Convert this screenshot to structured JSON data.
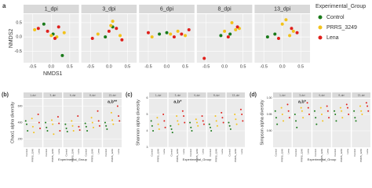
{
  "chart_data": [
    {
      "type": "scatter",
      "panel_label": "a",
      "xlabel": "NMDS1",
      "ylabel": "NMDS2",
      "legend_title": "Experimental_Group",
      "groups": [
        {
          "name": "Control",
          "color": "#1a7a1a"
        },
        {
          "name": "PRRS_3249",
          "color": "#f2c21b"
        },
        {
          "name": "Lena",
          "color": "#e0201b"
        }
      ],
      "xlim": [
        -0.75,
        0.75
      ],
      "xticks": [
        -0.5,
        {
          "value": 0,
          "label": "0.0"
        },
        0.5
      ],
      "ylim": [
        -0.9,
        0.8
      ],
      "yticks": [
        -0.5,
        {
          "value": 0,
          "label": "0.0"
        },
        0.5
      ],
      "grid": true,
      "facets": [
        {
          "title": "1_dpi",
          "series": [
            {
              "x": [
                -0.2,
                0.05,
                0.3
              ],
              "y": [
                0.45,
                0.1,
                -0.65
              ]
            },
            {
              "x": [
                -0.45,
                0.0,
                0.15,
                0.35
              ],
              "y": [
                0.25,
                0.05,
                0.0,
                0.15
              ]
            },
            {
              "x": [
                -0.35,
                -0.1,
                0.1,
                0.2
              ],
              "y": [
                0.3,
                0.2,
                -0.05,
                0.35
              ]
            }
          ]
        },
        {
          "title": "3_dpi",
          "series": [
            {
              "x": [
                -0.1,
                0.1
              ],
              "y": [
                0.0,
                0.35
              ]
            },
            {
              "x": [
                -0.3,
                0.05,
                0.3,
                0.1
              ],
              "y": [
                0.1,
                0.4,
                0.05,
                0.55
              ]
            },
            {
              "x": [
                -0.45,
                0.0,
                0.2,
                0.35
              ],
              "y": [
                -0.05,
                0.2,
                0.3,
                -0.1
              ]
            }
          ]
        },
        {
          "title": "6_dpi",
          "series": [
            {
              "x": [
                -0.2,
                0.0
              ],
              "y": [
                0.1,
                0.15
              ]
            },
            {
              "x": [
                -0.4,
                0.1,
                0.3,
                0.5
              ],
              "y": [
                0.0,
                0.1,
                0.2,
                0.05
              ]
            },
            {
              "x": [
                -0.5,
                0.2,
                0.4,
                0.6
              ],
              "y": [
                0.15,
                0.0,
                0.1,
                0.25
              ]
            }
          ]
        },
        {
          "title": "8_dpi",
          "series": [
            {
              "x": [
                -0.1,
                0.15
              ],
              "y": [
                0.05,
                0.1
              ]
            },
            {
              "x": [
                0.0,
                0.3,
                0.2,
                0.4
              ],
              "y": [
                0.2,
                0.25,
                0.5,
                0.3
              ]
            },
            {
              "x": [
                -0.55,
                0.1,
                0.35
              ],
              "y": [
                -0.75,
                0.0,
                0.35
              ]
            }
          ]
        },
        {
          "title": "13_dpi",
          "series": [
            {
              "x": [
                -0.4,
                -0.2
              ],
              "y": [
                0.0,
                0.1
              ]
            },
            {
              "x": [
                0.0,
                0.1,
                0.3,
                0.2
              ],
              "y": [
                0.45,
                0.6,
                0.2,
                0.05
              ]
            },
            {
              "x": [
                -0.1,
                0.25,
                0.4
              ],
              "y": [
                -0.05,
                0.3,
                0.15
              ]
            }
          ]
        }
      ]
    },
    {
      "type": "strip",
      "panel_label": "(b)",
      "ylabel": "Chao1 alpha diversity",
      "xlabel": "Experimental_Group",
      "categories": [
        "Control",
        "PRRS_3249",
        "Lena"
      ],
      "colors": [
        "#1a7a1a",
        "#f2c21b",
        "#e0201b"
      ],
      "ylim": [
        100,
        700
      ],
      "yticks": [
        200,
        400,
        600
      ],
      "annotation": {
        "facet": 4,
        "text": "a,b**"
      },
      "facets": [
        {
          "title": "1_dpi",
          "values": [
            [
              420,
              380,
              300
            ],
            [
              450,
              350,
              280
            ],
            [
              500,
              400,
              330
            ]
          ]
        },
        {
          "title": "3_dpi",
          "values": [
            [
              400,
              340,
              300
            ],
            [
              430,
              380,
              260
            ],
            [
              470,
              390,
              300
            ]
          ]
        },
        {
          "title": "6_dpi",
          "values": [
            [
              380,
              330,
              290
            ],
            [
              420,
              360,
              300
            ],
            [
              480,
              350,
              310
            ]
          ]
        },
        {
          "title": "8_dpi",
          "values": [
            [
              390,
              350,
              300
            ],
            [
              460,
              400,
              340
            ],
            [
              540,
              420,
              360
            ]
          ]
        },
        {
          "title": "13_dpi",
          "values": [
            [
              400,
              360,
              320
            ],
            [
              520,
              430,
              380
            ],
            [
              600,
              480,
              420
            ]
          ]
        }
      ]
    },
    {
      "type": "strip",
      "panel_label": "(c)",
      "ylabel": "Shannon alpha diversity",
      "xlabel": "Experimental_Group",
      "categories": [
        "Control",
        "PRRS_3249",
        "Lena"
      ],
      "colors": [
        "#1a7a1a",
        "#f2c21b",
        "#e0201b"
      ],
      "ylim": [
        3,
        6
      ],
      "yticks": [
        3,
        4,
        5,
        6
      ],
      "annotation": {
        "facet": 1,
        "text": "a,b*"
      },
      "facets": [
        {
          "title": "1_dpi",
          "values": [
            [
              4.6,
              4.3,
              4.0
            ],
            [
              4.8,
              4.4,
              4.1
            ],
            [
              5.0,
              4.6,
              4.2
            ]
          ]
        },
        {
          "title": "3_dpi",
          "values": [
            [
              4.3,
              4.1,
              3.9
            ],
            [
              4.9,
              4.6,
              4.4
            ],
            [
              5.2,
              4.9,
              4.5
            ]
          ]
        },
        {
          "title": "6_dpi",
          "values": [
            [
              4.5,
              4.2,
              4.0
            ],
            [
              4.7,
              4.5,
              4.3
            ],
            [
              4.9,
              4.6,
              4.4
            ]
          ]
        },
        {
          "title": "8_dpi",
          "values": [
            [
              4.4,
              4.2,
              4.0
            ],
            [
              4.9,
              4.6,
              4.3
            ],
            [
              5.1,
              4.8,
              4.5
            ]
          ]
        },
        {
          "title": "13_dpi",
          "values": [
            [
              4.5,
              4.3,
              4.1
            ],
            [
              5.0,
              4.7,
              4.4
            ],
            [
              5.3,
              5.0,
              4.6
            ]
          ]
        }
      ]
    },
    {
      "type": "strip",
      "panel_label": "(d)",
      "ylabel": "Simpson alpha diversity",
      "xlabel": "Experimental_Group",
      "categories": [
        "Control",
        "PRRS_3249",
        "Lena"
      ],
      "colors": [
        "#1a7a1a",
        "#f2c21b",
        "#e0201b"
      ],
      "ylim": [
        0.85,
        1.0
      ],
      "yticks": [
        {
          "value": 0.9,
          "label": "0.90"
        },
        0.95,
        {
          "value": 1,
          "label": "1.00"
        }
      ],
      "annotation": {
        "facet": 1,
        "text": "a,b*"
      },
      "facets": [
        {
          "title": "1_dpi",
          "values": [
            [
              0.96,
              0.94,
              0.92
            ],
            [
              0.97,
              0.95,
              0.93
            ],
            [
              0.98,
              0.96,
              0.94
            ]
          ]
        },
        {
          "title": "3_dpi",
          "values": [
            [
              0.95,
              0.93,
              0.91
            ],
            [
              0.97,
              0.96,
              0.94
            ],
            [
              0.985,
              0.97,
              0.95
            ]
          ]
        },
        {
          "title": "6_dpi",
          "values": [
            [
              0.96,
              0.94,
              0.92
            ],
            [
              0.97,
              0.95,
              0.93
            ],
            [
              0.975,
              0.96,
              0.94
            ]
          ]
        },
        {
          "title": "8_dpi",
          "values": [
            [
              0.96,
              0.95,
              0.93
            ],
            [
              0.97,
              0.96,
              0.94
            ],
            [
              0.98,
              0.97,
              0.95
            ]
          ]
        },
        {
          "title": "13_dpi",
          "values": [
            [
              0.96,
              0.94,
              0.93
            ],
            [
              0.975,
              0.96,
              0.95
            ],
            [
              0.985,
              0.975,
              0.96
            ]
          ]
        }
      ]
    }
  ]
}
